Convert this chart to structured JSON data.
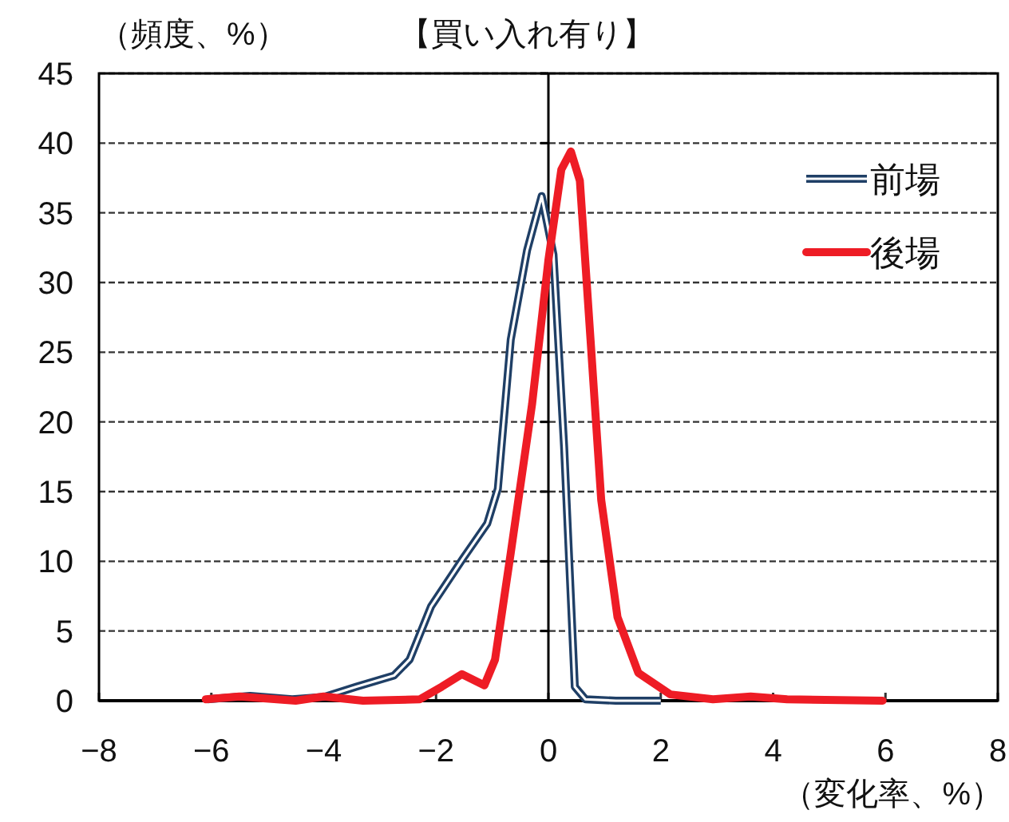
{
  "chart_data": {
    "type": "line",
    "title": "【買い入れ有り】",
    "ylabel": "（頻度、%）",
    "xlabel": "（変化率、%）",
    "xlim": [
      -8,
      8
    ],
    "ylim": [
      0,
      45
    ],
    "xticks": [
      -8,
      -6,
      -4,
      -2,
      0,
      2,
      4,
      6,
      8
    ],
    "yticks": [
      0,
      5,
      10,
      15,
      20,
      25,
      30,
      35,
      40,
      45
    ],
    "grid": "y",
    "legend": "top right",
    "ref_lines": [
      {
        "axis": "x",
        "value": 0,
        "color": "#000000"
      }
    ],
    "series": [
      {
        "name": "前場",
        "color": "#1f3f66",
        "x": [
          -6.07,
          -5.31,
          -4.56,
          -3.99,
          -3.42,
          -2.75,
          -2.47,
          -2.09,
          -1.52,
          -1.09,
          -0.9,
          -0.67,
          -0.38,
          -0.12,
          0.09,
          0.28,
          0.47,
          0.66,
          1.2,
          2.0
        ],
        "values": [
          0.1,
          0.35,
          0.1,
          0.27,
          1.0,
          1.8,
          2.95,
          6.75,
          10.2,
          12.7,
          15.2,
          25.9,
          32.3,
          36.2,
          32.0,
          18.2,
          1.0,
          0.1,
          0,
          0
        ]
      },
      {
        "name": "後場",
        "color": "#ee1c25",
        "x": [
          -6.1,
          -5.5,
          -4.5,
          -4.0,
          -3.3,
          -2.29,
          -1.9,
          -1.54,
          -1.14,
          -0.95,
          -0.67,
          -0.29,
          0,
          0.23,
          0.4,
          0.56,
          0.75,
          0.94,
          1.23,
          1.6,
          2.17,
          2.93,
          3.6,
          4.25,
          5.95
        ],
        "values": [
          0.1,
          0.3,
          0,
          0.3,
          0,
          0.1,
          1.0,
          1.9,
          1.1,
          2.95,
          10.6,
          21.3,
          31.6,
          38.1,
          39.4,
          37.3,
          25.9,
          14.4,
          6.0,
          2.0,
          0.45,
          0.1,
          0.3,
          0.1,
          0
        ]
      }
    ]
  }
}
